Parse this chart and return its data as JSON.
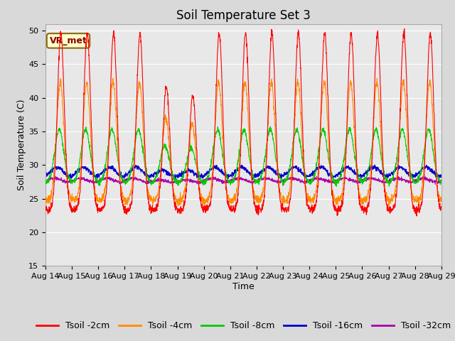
{
  "title": "Soil Temperature Set 3",
  "xlabel": "Time",
  "ylabel": "Soil Temperature (C)",
  "ylim": [
    15,
    51
  ],
  "yticks": [
    15,
    20,
    25,
    30,
    35,
    40,
    45,
    50
  ],
  "x_labels": [
    "Aug 14",
    "Aug 15",
    "Aug 16",
    "Aug 17",
    "Aug 18",
    "Aug 19",
    "Aug 20",
    "Aug 21",
    "Aug 22",
    "Aug 23",
    "Aug 24",
    "Aug 25",
    "Aug 26",
    "Aug 27",
    "Aug 28",
    "Aug 29"
  ],
  "annotation_text": "VR_met",
  "annotation_bg": "#ffffcc",
  "annotation_border": "#8B6914",
  "line_colors": {
    "2cm": "#ff0000",
    "4cm": "#ff8c00",
    "8cm": "#00cc00",
    "16cm": "#0000cc",
    "32cm": "#aa00aa"
  },
  "legend_labels": [
    "Tsoil -2cm",
    "Tsoil -4cm",
    "Tsoil -8cm",
    "Tsoil -16cm",
    "Tsoil -32cm"
  ],
  "plot_bg": "#e8e8e8",
  "title_fontsize": 12,
  "axis_fontsize": 9,
  "tick_fontsize": 8,
  "legend_fontsize": 9
}
